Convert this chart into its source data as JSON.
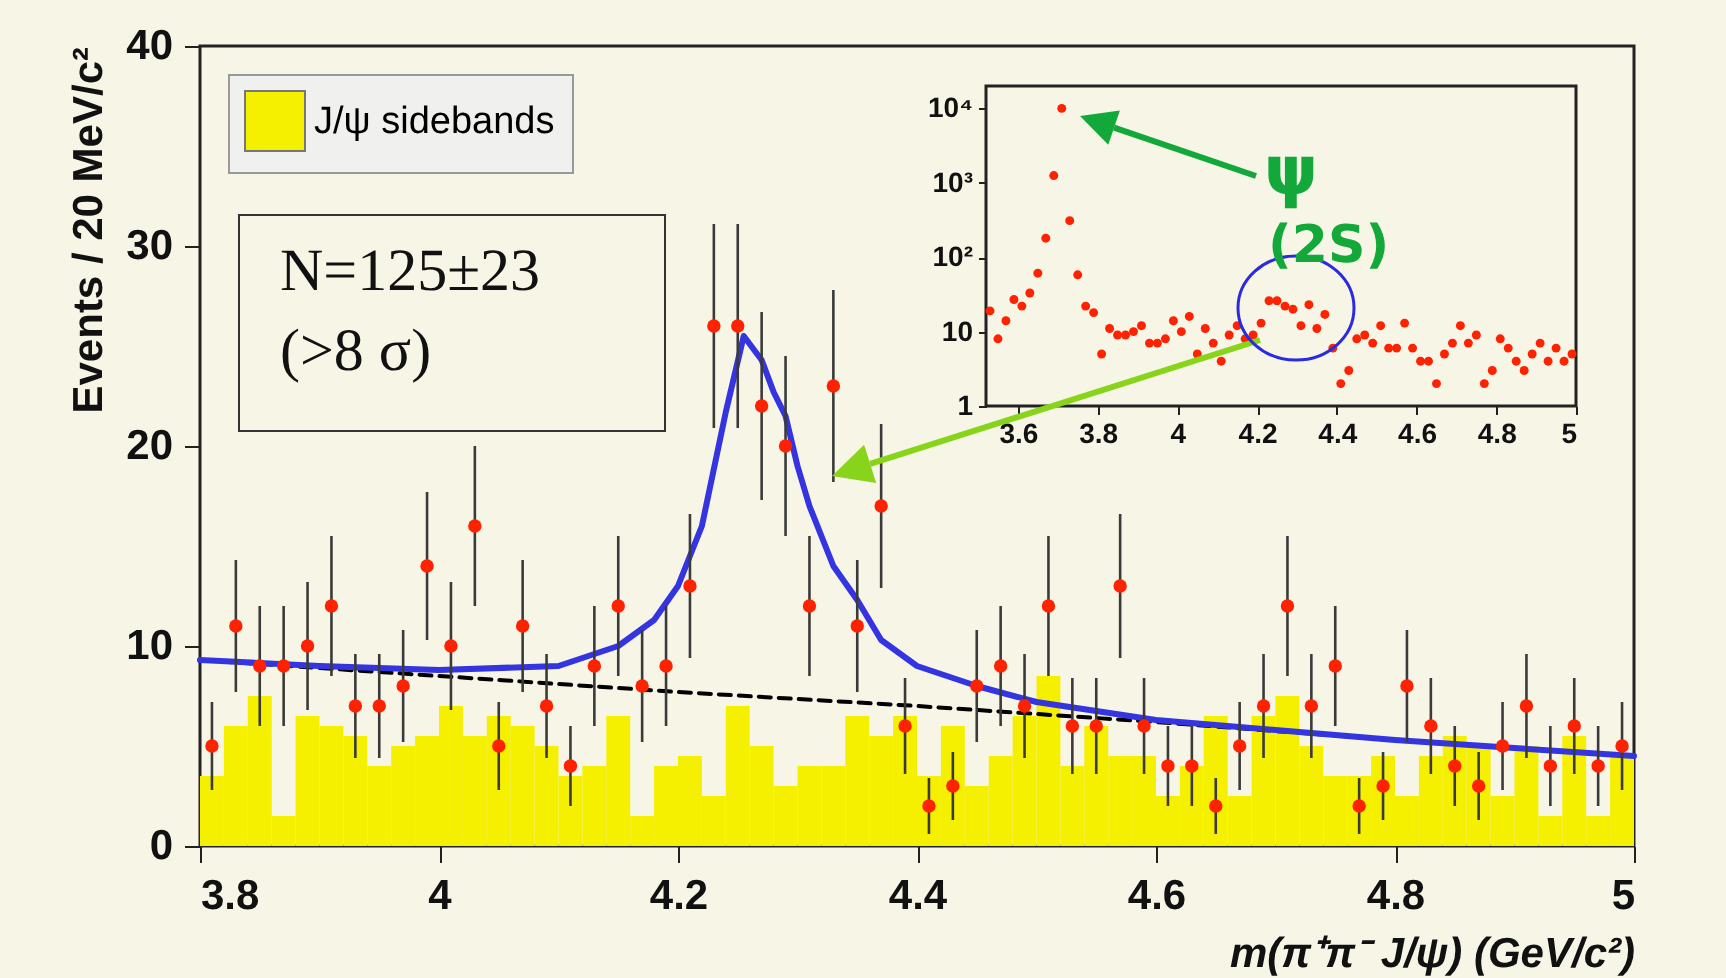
{
  "chart_data": [
    {
      "type": "scatter",
      "xlabel": "m(π⁺π⁻ J/ψ) (GeV/c²)",
      "ylabel": "Events / 20 MeV/c²",
      "xlim": [
        3.8,
        5
      ],
      "ylim": [
        0,
        40
      ],
      "xticks": [
        3.8,
        4,
        4.2,
        4.4,
        4.6,
        4.8,
        5
      ],
      "yticks": [
        0,
        10,
        20,
        30,
        40
      ],
      "legend": "top left",
      "annotations": [
        "N=125±23",
        "(>8 σ)"
      ],
      "series": [
        {
          "name": "J/ψ sidebands",
          "type": "histogram",
          "color": "#f5f000",
          "bins": [
            3.8,
            3.82,
            3.84,
            3.86,
            3.88,
            3.9,
            3.92,
            3.94,
            3.96,
            3.98,
            4,
            4.02,
            4.04,
            4.06,
            4.08,
            4.1,
            4.12,
            4.14,
            4.16,
            4.18,
            4.2,
            4.22,
            4.24,
            4.26,
            4.28,
            4.3,
            4.32,
            4.34,
            4.36,
            4.38,
            4.4,
            4.42,
            4.44,
            4.46,
            4.48,
            4.5,
            4.52,
            4.54,
            4.56,
            4.58,
            4.6,
            4.62,
            4.64,
            4.66,
            4.68,
            4.7,
            4.72,
            4.74,
            4.76,
            4.78,
            4.8,
            4.82,
            4.84,
            4.86,
            4.88,
            4.9,
            4.92,
            4.94,
            4.96,
            4.98,
            5
          ],
          "values": [
            3.5,
            6,
            7.5,
            1.5,
            6.5,
            6,
            5.5,
            4,
            5,
            5.5,
            7,
            5.5,
            6.5,
            6,
            5,
            3.5,
            4,
            6.5,
            1.5,
            4,
            4.5,
            2.5,
            7,
            5,
            3,
            4,
            4,
            6.5,
            5.5,
            6.5,
            3.5,
            6,
            3,
            4.5,
            6.5,
            8.5,
            4,
            6,
            4.5,
            4.5,
            2.5,
            4,
            6.5,
            2.5,
            6.5,
            7.5,
            5,
            3.5,
            3.5,
            4.5,
            2.5,
            4.5,
            5.5,
            5,
            2.5,
            5,
            1.5,
            5.5,
            1.5,
            4.5
          ]
        },
        {
          "type": "line",
          "color": "#000000",
          "line_style": "dashed",
          "x": [
            3.8,
            4.0,
            4.2,
            4.4,
            4.6,
            4.8,
            5.0
          ],
          "values": [
            9.3,
            8.5,
            7.7,
            7.0,
            6.2,
            5.3,
            4.5
          ]
        },
        {
          "type": "line",
          "color": "#3434e0",
          "line_style": "solid",
          "x": [
            3.8,
            3.9,
            4.0,
            4.1,
            4.15,
            4.18,
            4.2,
            4.22,
            4.24,
            4.255,
            4.27,
            4.28,
            4.29,
            4.3,
            4.31,
            4.33,
            4.35,
            4.37,
            4.4,
            4.45,
            4.5,
            4.6,
            4.7,
            4.8,
            4.9,
            5.0
          ],
          "values": [
            9.3,
            9.0,
            8.8,
            9.0,
            10,
            11.3,
            13,
            16,
            21.7,
            25.5,
            24.3,
            22.7,
            21.5,
            19,
            17,
            14,
            12.3,
            10.3,
            9,
            8,
            7.2,
            6.3,
            5.8,
            5.3,
            4.9,
            4.5
          ]
        },
        {
          "marker": "circle",
          "color": "#ff2200",
          "x": [
            3.81,
            3.83,
            3.85,
            3.87,
            3.89,
            3.91,
            3.93,
            3.95,
            3.97,
            3.99,
            4.01,
            4.03,
            4.05,
            4.07,
            4.09,
            4.11,
            4.13,
            4.15,
            4.17,
            4.19,
            4.21,
            4.23,
            4.25,
            4.27,
            4.29,
            4.31,
            4.33,
            4.35,
            4.37,
            4.39,
            4.41,
            4.43,
            4.45,
            4.47,
            4.49,
            4.51,
            4.53,
            4.55,
            4.57,
            4.59,
            4.61,
            4.63,
            4.65,
            4.67,
            4.69,
            4.71,
            4.73,
            4.75,
            4.77,
            4.79,
            4.81,
            4.83,
            4.85,
            4.87,
            4.89,
            4.91,
            4.93,
            4.95,
            4.97,
            4.99
          ],
          "values": [
            5,
            11,
            9,
            9,
            10,
            12,
            7,
            7,
            8,
            14,
            10,
            16,
            5,
            11,
            7,
            4,
            9,
            12,
            8,
            9,
            13,
            26,
            26,
            22,
            20,
            12,
            23,
            11,
            17,
            6,
            2,
            3,
            8,
            9,
            7,
            12,
            6,
            6,
            13,
            6,
            4,
            4,
            2,
            5,
            7,
            12,
            7,
            9,
            2,
            3,
            8,
            6,
            4,
            3,
            5,
            7,
            4,
            6,
            4,
            5
          ],
          "errors": [
            2.2,
            3.3,
            3,
            3,
            3.2,
            3.5,
            2.6,
            2.6,
            2.8,
            3.7,
            3.2,
            4,
            2.2,
            3.3,
            2.6,
            2,
            3,
            3.5,
            2.8,
            3,
            3.6,
            5.1,
            5.1,
            4.7,
            4.5,
            3.5,
            4.8,
            3.3,
            4.1,
            2.4,
            1.4,
            1.7,
            2.8,
            3,
            2.6,
            3.5,
            2.4,
            2.4,
            3.6,
            2.4,
            2,
            2,
            1.4,
            2.2,
            2.6,
            3.5,
            2.6,
            3,
            1.4,
            1.7,
            2.8,
            2.4,
            2,
            1.7,
            2.2,
            2.6,
            2,
            2.4,
            2,
            2.2
          ]
        }
      ]
    },
    {
      "type": "scatter",
      "log": "y",
      "xlim": [
        3.52,
        5
      ],
      "ylim": [
        1,
        20000
      ],
      "xticks": [
        3.6,
        3.8,
        4,
        4.2,
        4.4,
        4.6,
        4.8,
        5
      ],
      "yticks": [
        1,
        10,
        {
          "value": 100,
          "label": "10²"
        },
        {
          "value": 1000,
          "label": "10³"
        },
        {
          "value": 10000,
          "label": "10⁴"
        }
      ],
      "annotations": [
        "ψ",
        "(2S)"
      ],
      "series": [
        {
          "marker": "circle",
          "color": "#ff2200",
          "x": [
            3.53,
            3.55,
            3.57,
            3.59,
            3.61,
            3.63,
            3.65,
            3.67,
            3.69,
            3.71,
            3.73,
            3.75,
            3.77,
            3.79,
            3.81,
            3.83,
            3.85,
            3.87,
            3.89,
            3.91,
            3.93,
            3.95,
            3.97,
            3.99,
            4.01,
            4.03,
            4.05,
            4.07,
            4.09,
            4.11,
            4.13,
            4.15,
            4.17,
            4.19,
            4.21,
            4.23,
            4.25,
            4.27,
            4.29,
            4.31,
            4.33,
            4.35,
            4.37,
            4.39,
            4.41,
            4.43,
            4.45,
            4.47,
            4.49,
            4.51,
            4.53,
            4.55,
            4.57,
            4.59,
            4.61,
            4.63,
            4.65,
            4.67,
            4.69,
            4.71,
            4.73,
            4.75,
            4.77,
            4.79,
            4.81,
            4.83,
            4.85,
            4.87,
            4.89,
            4.91,
            4.93,
            4.95,
            4.97,
            4.99
          ],
          "values": [
            19,
            8,
            14,
            27,
            22,
            33,
            61,
            180,
            1250,
            10000,
            310,
            58,
            22,
            18,
            5,
            11,
            9,
            9,
            10,
            12,
            7,
            7,
            8,
            14,
            10,
            16,
            5,
            11,
            7,
            4,
            9,
            12,
            8,
            9,
            13,
            26,
            26,
            22,
            20,
            12,
            23,
            11,
            17,
            6,
            2,
            3,
            8,
            9,
            7,
            12,
            6,
            6,
            13,
            6,
            4,
            4,
            2,
            5,
            7,
            12,
            7,
            9,
            2,
            3,
            8,
            6,
            4,
            3,
            5,
            7,
            4,
            6,
            4,
            5
          ]
        }
      ]
    }
  ]
}
